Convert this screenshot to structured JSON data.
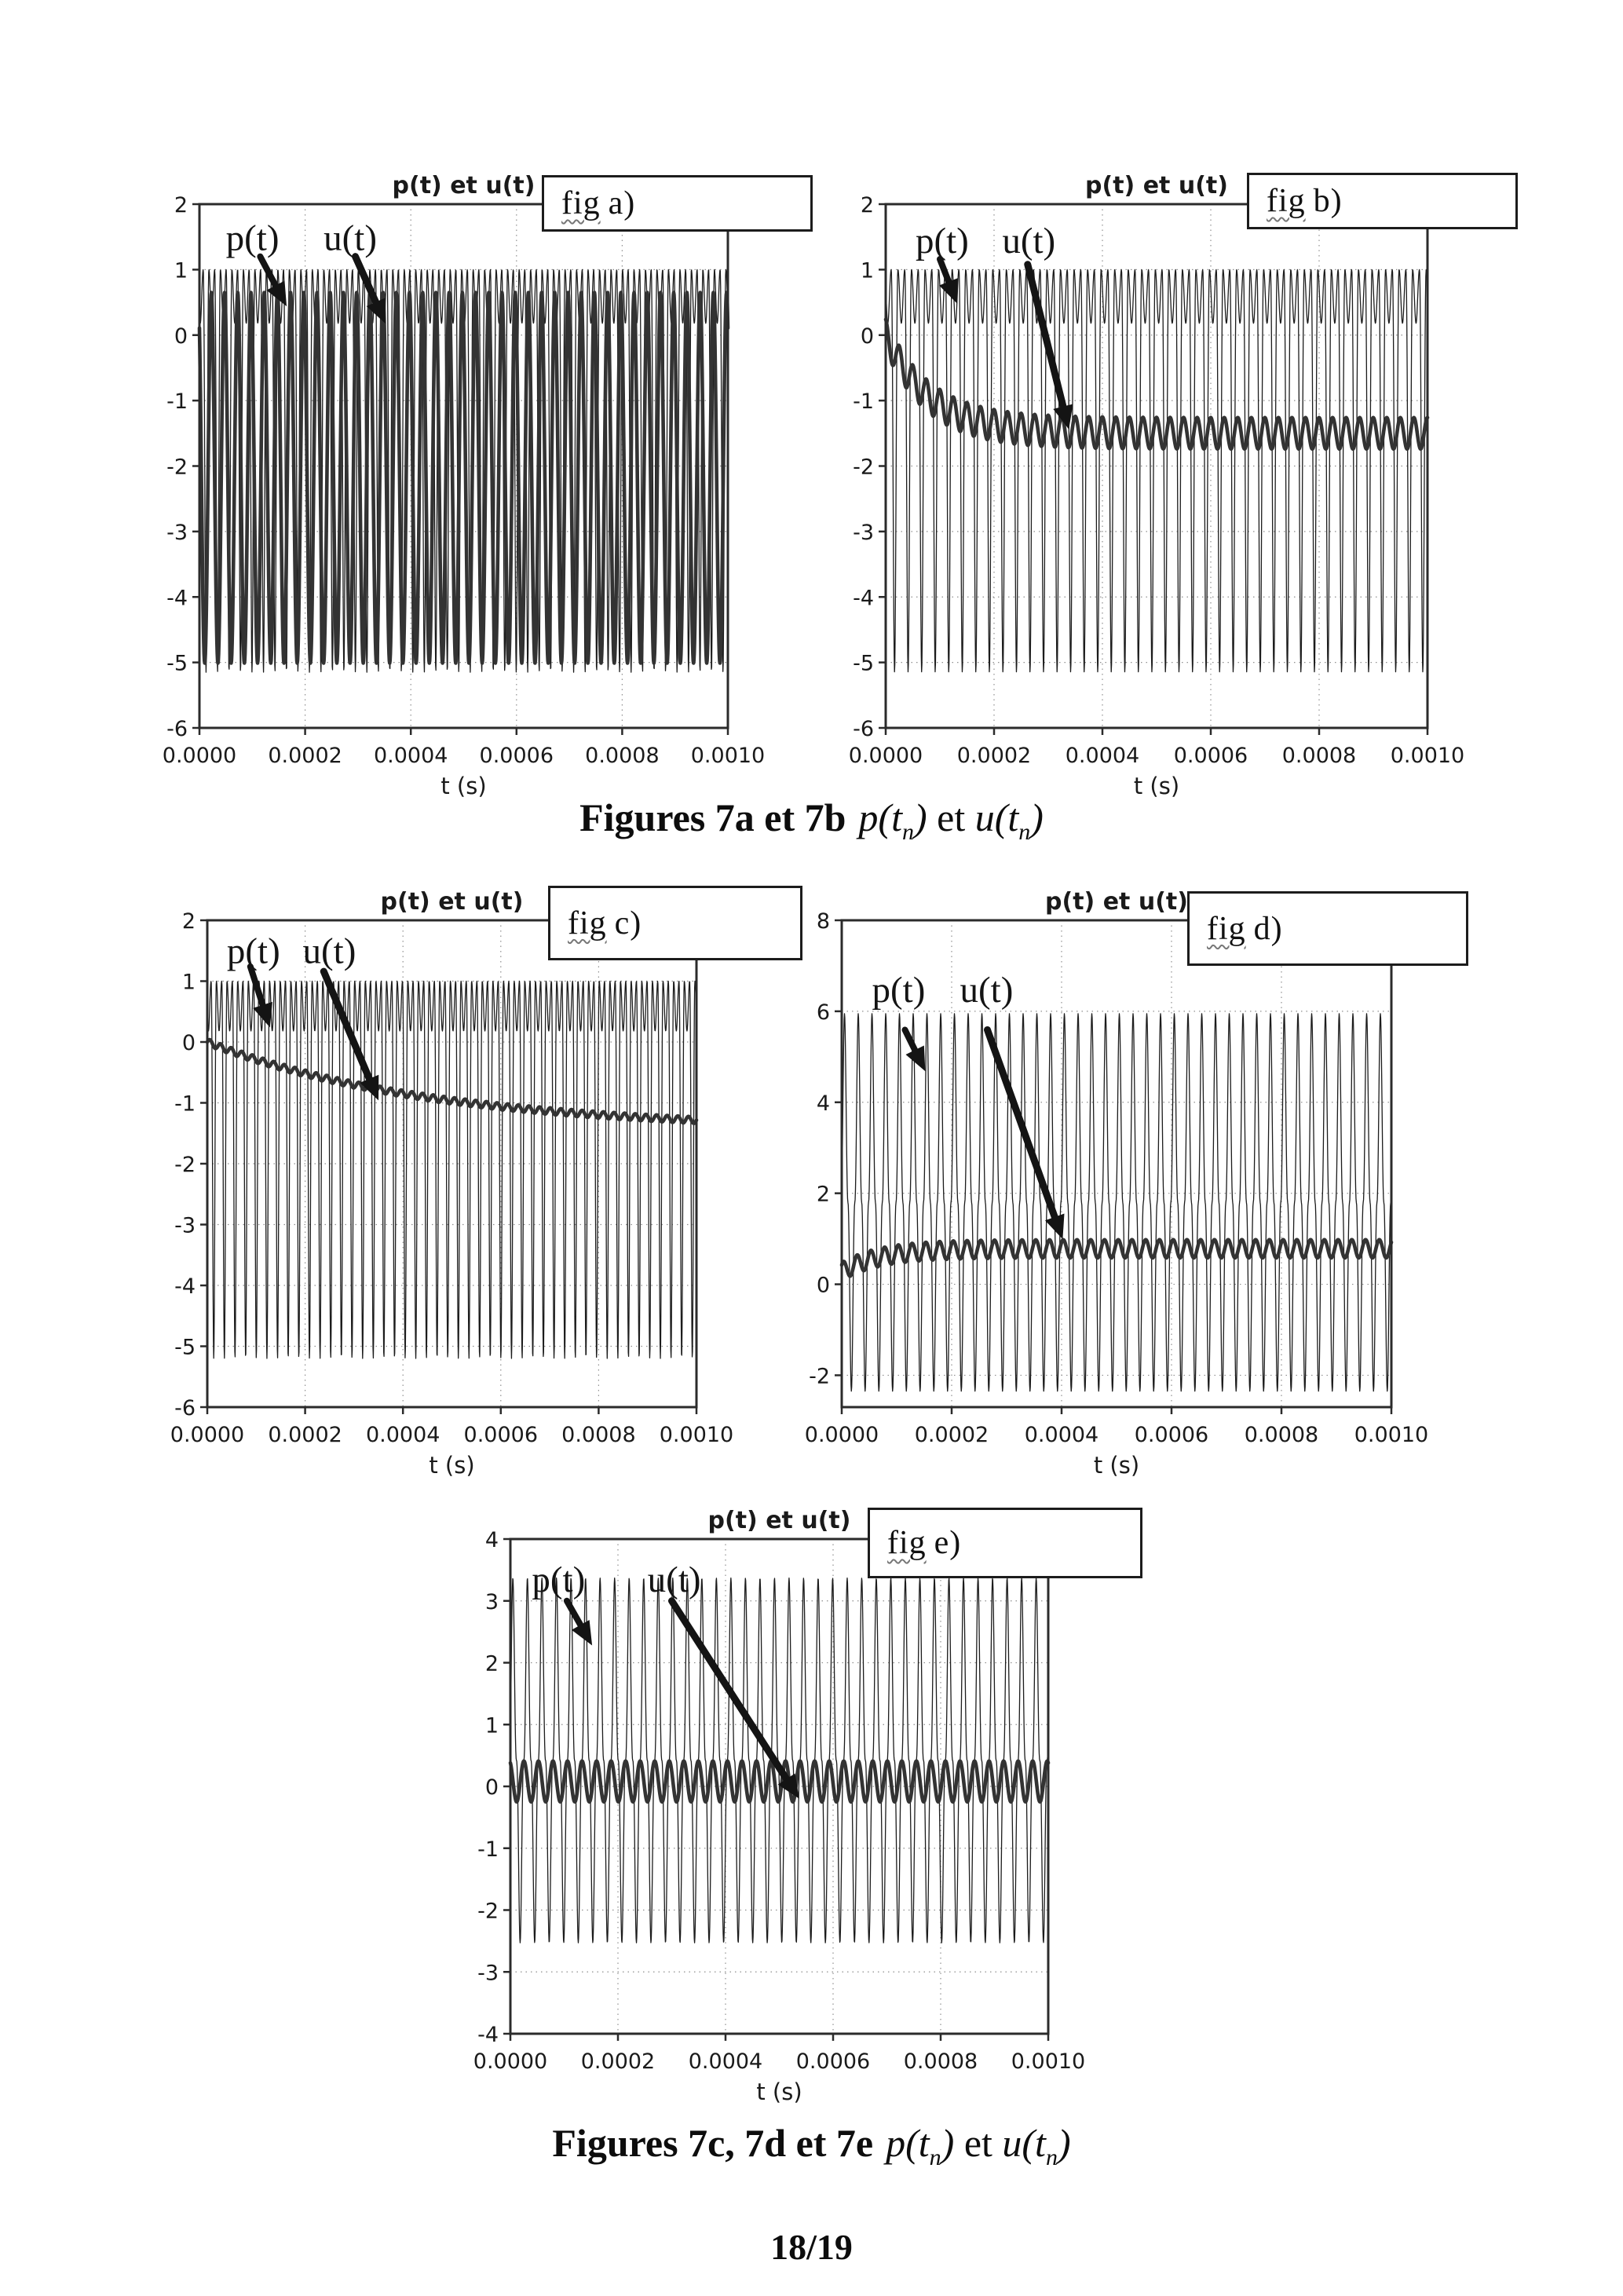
{
  "page": {
    "page_number": "18/19",
    "captions": [
      {
        "bold": "Figures 7a et 7b",
        "formula": {
          "f1": "p(t",
          "s1": "n",
          "f2": ")",
          "f3": " et ",
          "f4": "u(t",
          "s2": "n",
          "f5": ")"
        }
      },
      {
        "bold": "Figures 7c, 7d et 7e",
        "formula": {
          "f1": "p(t",
          "s1": "n",
          "f2": ")",
          "f3": " et ",
          "f4": "u(t",
          "s2": "n",
          "f5": ")"
        }
      }
    ]
  },
  "chart_data": [
    {
      "id": "7a",
      "type": "line",
      "title": "p(t) et u(t)",
      "xlabel": "t (s)",
      "fig_label": {
        "word": "fig",
        "suffix": " a)"
      },
      "xlim": [
        0,
        0.001
      ],
      "xticks": [
        "0.0000",
        "0.0002",
        "0.0004",
        "0.0006",
        "0.0008",
        "0.0010"
      ],
      "ylim": [
        -6,
        2
      ],
      "yticks": [
        2,
        1,
        0,
        -1,
        -2,
        -3,
        -4,
        -5,
        -6
      ],
      "grid": true,
      "legend_position": "none",
      "series": [
        {
          "name": "p(t)",
          "style": "thin",
          "type": "carrier",
          "cycles": 46,
          "top": 1,
          "shallow": 0.82,
          "deep": 5.33,
          "power": 2.5,
          "phase": 1.1
        },
        {
          "name": "u(t)",
          "style": "thick",
          "type": "sine",
          "cycles": 40,
          "amp": 2.83,
          "offset": -2.18,
          "phase": 2.2
        }
      ],
      "annotations": {
        "p": {
          "label": "p(t)",
          "text_xy": [
            0.05,
            0.025
          ],
          "arrow": [
            [
              0.115,
              0.1
            ],
            [
              0.165,
              0.195
            ]
          ]
        },
        "u": {
          "label": "u(t)",
          "text_xy": [
            0.235,
            0.025
          ],
          "arrow": [
            [
              0.295,
              0.1
            ],
            [
              0.352,
              0.228
            ]
          ]
        }
      }
    },
    {
      "id": "7b",
      "type": "line",
      "title": "p(t) et u(t)",
      "xlabel": "t (s)",
      "fig_label": {
        "word": "fig",
        "suffix": " b)"
      },
      "xlim": [
        0,
        0.001
      ],
      "xticks": [
        "0.0000",
        "0.0002",
        "0.0004",
        "0.0006",
        "0.0008",
        "0.0010"
      ],
      "ylim": [
        -6,
        2
      ],
      "yticks": [
        2,
        1,
        0,
        -1,
        -2,
        -3,
        -4,
        -5,
        -6
      ],
      "grid": true,
      "legend_position": "none",
      "series": [
        {
          "name": "p(t)",
          "style": "thin",
          "type": "carrier",
          "cycles": 40,
          "top": 1,
          "shallow": 0.82,
          "deep": 5.33,
          "power": 2.5,
          "phase": 0.6
        },
        {
          "name": "u(t)",
          "style": "thick",
          "type": "decay",
          "start": 0,
          "end": -1.5,
          "tau": 0.08,
          "ripple": 0.24,
          "rippleCycles": 40,
          "rphase": 1.6
        }
      ],
      "annotations": {
        "p": {
          "label": "p(t)",
          "text_xy": [
            0.055,
            0.03
          ],
          "arrow": [
            [
              0.1,
              0.105
            ],
            [
              0.132,
              0.19
            ]
          ]
        },
        "u": {
          "label": "u(t)",
          "text_xy": [
            0.215,
            0.03
          ],
          "arrow": [
            [
              0.262,
              0.115
            ],
            [
              0.338,
              0.43
            ]
          ]
        }
      }
    },
    {
      "id": "7c",
      "type": "line",
      "title": "p(t) et u(t)",
      "xlabel": "t (s)",
      "fig_label": {
        "word": "fig",
        "suffix": " c)"
      },
      "xlim": [
        0,
        0.001
      ],
      "xticks": [
        "0.0000",
        "0.0002",
        "0.0004",
        "0.0006",
        "0.0008",
        "0.0010"
      ],
      "ylim": [
        -6,
        2
      ],
      "yticks": [
        2,
        1,
        0,
        -1,
        -2,
        -3,
        -4,
        -5,
        -6
      ],
      "grid": true,
      "legend_position": "none",
      "series": [
        {
          "name": "p(t)",
          "style": "thin",
          "type": "carrier",
          "cycles": 46,
          "top": 1,
          "shallow": 0.82,
          "deep": 5.38,
          "power": 2.5,
          "phase": 0.9
        },
        {
          "name": "u(t)",
          "style": "thick",
          "type": "decay",
          "start": 0,
          "end": -1.44,
          "tau": 0.45,
          "ripple": 0.055,
          "rippleCycles": 46,
          "rphase": 0
        }
      ],
      "annotations": {
        "p": {
          "label": "p(t)",
          "text_xy": [
            0.04,
            0.02
          ],
          "arrow": [
            [
              0.088,
              0.095
            ],
            [
              0.128,
              0.22
            ]
          ]
        },
        "u": {
          "label": "u(t)",
          "text_xy": [
            0.195,
            0.02
          ],
          "arrow": [
            [
              0.238,
              0.105
            ],
            [
              0.35,
              0.37
            ]
          ]
        }
      }
    },
    {
      "id": "7d",
      "type": "line",
      "title": "p(t) et u(t)",
      "xlabel": "t (s)",
      "fig_label": {
        "word": "fig",
        "suffix": " d)"
      },
      "xlim": [
        0,
        0.001
      ],
      "xticks": [
        "0.0000",
        "0.0002",
        "0.0004",
        "0.0006",
        "0.0008",
        "0.0010"
      ],
      "ylim": [
        -2.7,
        8
      ],
      "yticks": [
        8,
        6,
        4,
        2,
        0,
        -2
      ],
      "grid": true,
      "legend_position": "none",
      "series": [
        {
          "name": "p(t)",
          "style": "thin",
          "type": "spike",
          "cycles": 40,
          "amp": 4.15,
          "offset": 1.8,
          "power": 2.2,
          "phase": 0.3
        },
        {
          "name": "u(t)",
          "style": "thick",
          "type": "decay",
          "start": 0.28,
          "end": 0.78,
          "tau": 0.07,
          "ripple": 0.2,
          "rippleCycles": 40,
          "rphase": 0.8
        }
      ],
      "annotations": {
        "p": {
          "label": "p(t)",
          "text_xy": [
            0.055,
            0.1
          ],
          "arrow": [
            [
              0.115,
              0.225
            ],
            [
              0.152,
              0.31
            ]
          ]
        },
        "u": {
          "label": "u(t)",
          "text_xy": [
            0.215,
            0.1
          ],
          "arrow": [
            [
              0.265,
              0.225
            ],
            [
              0.402,
              0.655
            ]
          ]
        }
      }
    },
    {
      "id": "7e",
      "type": "line",
      "title": "p(t) et u(t)",
      "xlabel": "t (s)",
      "fig_label": {
        "word": "fig",
        "suffix": " e)"
      },
      "xlim": [
        0,
        0.001
      ],
      "xticks": [
        "0.0000",
        "0.0002",
        "0.0004",
        "0.0006",
        "0.0008",
        "0.0010"
      ],
      "ylim": [
        -4,
        4
      ],
      "yticks": [
        4,
        3,
        2,
        1,
        0,
        -1,
        -2,
        -3,
        -4
      ],
      "grid": true,
      "legend_position": "none",
      "series": [
        {
          "name": "p(t)",
          "style": "thin",
          "type": "spike",
          "cycles": 37,
          "amp": 2.95,
          "offset": 0.42,
          "power": 2.5,
          "phase": 0.5
        },
        {
          "name": "u(t)",
          "style": "thick",
          "type": "sine",
          "cycles": 37,
          "amp": 0.33,
          "offset": 0.08,
          "phase": 2.0
        }
      ],
      "annotations": {
        "p": {
          "label": "p(t)",
          "text_xy": [
            0.04,
            0.04
          ],
          "arrow": [
            [
              0.105,
              0.125
            ],
            [
              0.152,
              0.215
            ]
          ]
        },
        "u": {
          "label": "u(t)",
          "text_xy": [
            0.255,
            0.04
          ],
          "arrow": [
            [
              0.3,
              0.125
            ],
            [
              0.537,
              0.525
            ]
          ]
        }
      }
    }
  ],
  "style": {
    "axis_color": "#2b2b2b",
    "grid_color": "#8f8f8f",
    "p_color": "#1c1c1c",
    "u_color": "#333333",
    "annotation_color": "#141414",
    "text_color": "#1a1a1a"
  }
}
